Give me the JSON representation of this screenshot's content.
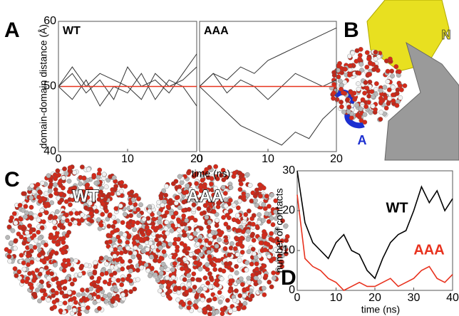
{
  "chart_data": [
    {
      "type": "line",
      "title": "WT",
      "ylabel": "domain-domain distance (Å)",
      "xlabel": "time (ns)",
      "x": [
        0,
        2,
        4,
        6,
        8,
        10,
        12,
        14,
        16,
        18,
        20
      ],
      "xlim": [
        0,
        20
      ],
      "ylim": [
        40,
        60
      ],
      "xticks": [
        0,
        10,
        20
      ],
      "yticks": [
        40,
        50,
        60
      ],
      "series": [
        {
          "color": "#333333",
          "values": [
            50,
            52,
            49,
            51,
            48,
            53,
            50,
            51,
            49,
            52,
            55
          ]
        },
        {
          "color": "#333333",
          "values": [
            50,
            48,
            51,
            47,
            50,
            49,
            52,
            48,
            51,
            50,
            47
          ]
        },
        {
          "color": "#333333",
          "values": [
            50,
            53,
            50,
            52,
            51,
            50,
            48,
            52,
            50,
            51,
            53
          ]
        },
        {
          "color": "#e8321e",
          "values": [
            50,
            50,
            50,
            50,
            50,
            50,
            50,
            50,
            50,
            50,
            50
          ]
        }
      ]
    },
    {
      "type": "line",
      "title": "AAA",
      "x": [
        0,
        2,
        4,
        6,
        8,
        10,
        12,
        14,
        16,
        18,
        20
      ],
      "xlim": [
        0,
        20
      ],
      "ylim": [
        40,
        60
      ],
      "xticks": [
        0,
        10,
        20
      ],
      "series": [
        {
          "color": "#333333",
          "values": [
            50,
            52,
            51,
            53,
            52,
            54,
            55,
            56,
            57,
            58,
            59
          ]
        },
        {
          "color": "#333333",
          "values": [
            50,
            48,
            46,
            44,
            43,
            42,
            41,
            43,
            42,
            45,
            47
          ]
        },
        {
          "color": "#333333",
          "values": [
            50,
            52,
            49,
            51,
            50,
            48,
            50,
            52,
            51,
            50,
            51
          ]
        },
        {
          "color": "#e8321e",
          "values": [
            50,
            50,
            50,
            50,
            50,
            50,
            50,
            50,
            50,
            50,
            50
          ]
        }
      ]
    },
    {
      "type": "line",
      "ylabel": "number of contacts",
      "xlabel": "time (ns)",
      "x": [
        0,
        2,
        4,
        6,
        8,
        10,
        12,
        14,
        16,
        18,
        20,
        22,
        24,
        26,
        28,
        30,
        32,
        34,
        36,
        38,
        40
      ],
      "xlim": [
        0,
        40
      ],
      "ylim": [
        0,
        30
      ],
      "xticks": [
        0,
        10,
        20,
        30,
        40
      ],
      "yticks": [
        0,
        10,
        20,
        30
      ],
      "annotations": [
        {
          "text": "WT",
          "color": "#000000"
        },
        {
          "text": "AAA",
          "color": "#e8321e"
        }
      ],
      "series": [
        {
          "color": "#000000",
          "values": [
            30,
            17,
            12,
            10,
            8,
            12,
            14,
            10,
            9,
            5,
            3,
            8,
            12,
            14,
            15,
            20,
            26,
            22,
            25,
            20,
            23
          ]
        },
        {
          "color": "#e8321e",
          "values": [
            24,
            8,
            6,
            5,
            3,
            2,
            0,
            1,
            2,
            1,
            1,
            2,
            3,
            1,
            2,
            3,
            5,
            6,
            3,
            2,
            4
          ]
        }
      ]
    }
  ],
  "panel_labels": [
    "A",
    "B",
    "C",
    "D"
  ],
  "structure_labels": {
    "n_domain": "N",
    "a_domain": "A"
  },
  "sphere_labels": [
    "WT",
    "AAA"
  ]
}
